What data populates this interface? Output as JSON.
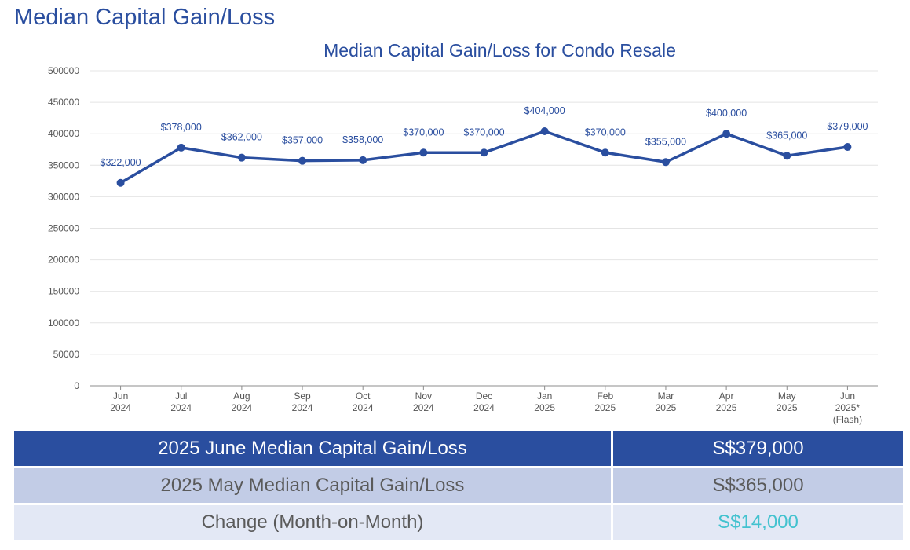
{
  "page_title": "Median Capital Gain/Loss",
  "colors": {
    "accent": "#2a4e9f",
    "positive_change": "#43c2cf"
  },
  "chart_data": {
    "type": "line",
    "title": "Median Capital Gain/Loss for Condo Resale",
    "xlabel": "",
    "ylabel": "",
    "ylim": [
      0,
      500000
    ],
    "yticks": [
      "500000",
      "450000",
      "400000",
      "350000",
      "300000",
      "250000",
      "200000",
      "150000",
      "100000",
      "50000",
      "0"
    ],
    "grid": true,
    "categories": [
      [
        "Jun",
        "2024"
      ],
      [
        "Jul",
        "2024"
      ],
      [
        "Aug",
        "2024"
      ],
      [
        "Sep",
        "2024"
      ],
      [
        "Oct",
        "2024"
      ],
      [
        "Nov",
        "2024"
      ],
      [
        "Dec",
        "2024"
      ],
      [
        "Jan",
        "2025"
      ],
      [
        "Feb",
        "2025"
      ],
      [
        "Mar",
        "2025"
      ],
      [
        "Apr",
        "2025"
      ],
      [
        "May",
        "2025"
      ],
      [
        "Jun",
        "2025*",
        "(Flash)"
      ]
    ],
    "series": [
      {
        "values": [
          322000,
          378000,
          362000,
          357000,
          358000,
          370000,
          370000,
          404000,
          370000,
          355000,
          400000,
          365000,
          379000
        ]
      }
    ],
    "data_labels": [
      "$322,000",
      "$378,000",
      "$362,000",
      "$357,000",
      "$358,000",
      "$370,000",
      "$370,000",
      "$404,000",
      "$370,000",
      "$355,000",
      "$400,000",
      "$365,000",
      "$379,000"
    ]
  },
  "summary": {
    "rows": [
      {
        "label": "2025 June Median Capital Gain/Loss",
        "value": "S$379,000"
      },
      {
        "label": "2025 May Median Capital Gain/Loss",
        "value": "S$365,000"
      },
      {
        "label": "Change (Month-on-Month)",
        "value": "S$14,000"
      }
    ]
  }
}
